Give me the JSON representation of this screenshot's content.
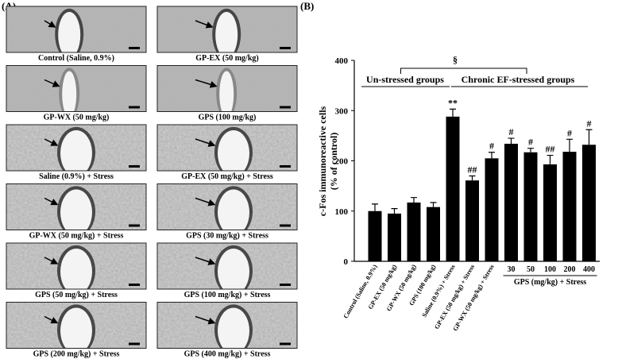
{
  "panel_a": {
    "label": "(A)",
    "images": [
      "Control (Saline, 0.9%)",
      "GP-EX (50 mg/kg)",
      "GP-WX (50 mg/kg)",
      "GPS (100 mg/kg)",
      "Saline (0.9%) + Stress",
      "GP-EX (50 mg/kg) + Stress",
      "GP-WX (50 mg/kg) + Stress",
      "GPS (30 mg/kg) + Stress",
      "GPS (50 mg/kg) + Stress",
      "GPS (100 mg/kg) + Stress",
      "GPS (200 mg/kg) + Stress",
      "GPS (400 mg/kg) + Stress"
    ]
  },
  "chart_data": {
    "type": "bar",
    "panel_label": "(B)",
    "y_label": [
      "c-Fos immunoreactive cells",
      "(% of control)"
    ],
    "categories": [
      "Control (Saline, 0.9%)",
      "GP-EX (50 mg/kg)",
      "GP-WX (50 mg/kg)",
      "GPS (100 mg/kg)",
      "Saline (0.9%) + Stress",
      "GP-EX (50 mg/kg) + Stress",
      "GP-WX (50 mg/kg) + Stress",
      "30",
      "50",
      "100",
      "200",
      "400"
    ],
    "category_group_label": "GPS (mg/kg) + Stress",
    "values": [
      100,
      95,
      117,
      108,
      288,
      161,
      205,
      234,
      217,
      193,
      218,
      232
    ],
    "errors": [
      14,
      10,
      10,
      9,
      15,
      9,
      12,
      11,
      8,
      18,
      25,
      30
    ],
    "significance": [
      null,
      null,
      null,
      null,
      "**",
      "##",
      "#",
      "#",
      "#",
      "##",
      "#",
      "#"
    ],
    "groups": [
      "Un-stressed groups",
      "Chronic EF-stressed groups"
    ],
    "bracket_label": "§",
    "color": "#000000",
    "ylim": [
      0,
      400
    ],
    "yticks": [
      0,
      100,
      200,
      300,
      400
    ]
  }
}
